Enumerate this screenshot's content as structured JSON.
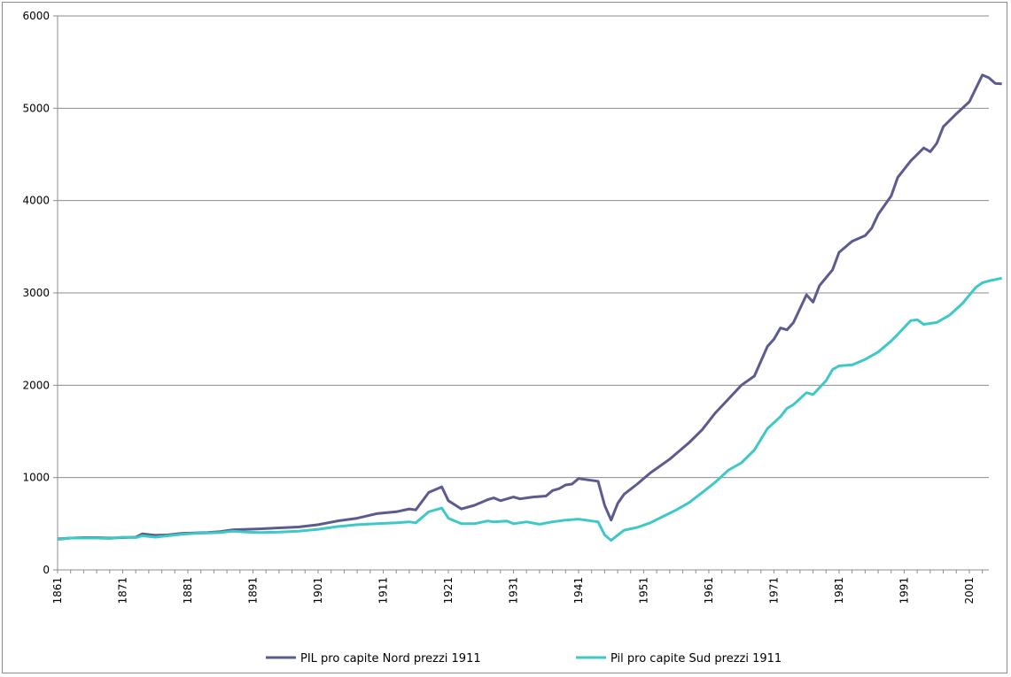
{
  "chart_data": {
    "type": "line",
    "title": "",
    "xlabel": "",
    "ylabel": "",
    "xlim": [
      1861,
      2004
    ],
    "ylim": [
      0,
      6000
    ],
    "y_ticks": [
      0,
      1000,
      2000,
      3000,
      4000,
      5000,
      6000
    ],
    "x_tick_labels": [
      "1861",
      "1871",
      "1881",
      "1891",
      "1901",
      "1911",
      "1921",
      "1931",
      "1941",
      "1951",
      "1961",
      "1971",
      "1981",
      "1991",
      "2001"
    ],
    "grid": "horizontal",
    "legend_position": "bottom",
    "series": [
      {
        "name": "PIL pro capite Nord prezzi 1911",
        "color": "#5b5b8f",
        "points": [
          [
            1861,
            335
          ],
          [
            1863,
            345
          ],
          [
            1865,
            350
          ],
          [
            1867,
            350
          ],
          [
            1869,
            345
          ],
          [
            1871,
            350
          ],
          [
            1873,
            355
          ],
          [
            1874,
            390
          ],
          [
            1876,
            375
          ],
          [
            1878,
            380
          ],
          [
            1880,
            395
          ],
          [
            1882,
            400
          ],
          [
            1884,
            405
          ],
          [
            1886,
            415
          ],
          [
            1888,
            435
          ],
          [
            1890,
            440
          ],
          [
            1892,
            445
          ],
          [
            1895,
            455
          ],
          [
            1898,
            465
          ],
          [
            1901,
            490
          ],
          [
            1904,
            530
          ],
          [
            1907,
            560
          ],
          [
            1910,
            610
          ],
          [
            1913,
            630
          ],
          [
            1915,
            660
          ],
          [
            1916,
            650
          ],
          [
            1918,
            840
          ],
          [
            1920,
            900
          ],
          [
            1921,
            750
          ],
          [
            1923,
            660
          ],
          [
            1925,
            700
          ],
          [
            1927,
            760
          ],
          [
            1928,
            780
          ],
          [
            1929,
            750
          ],
          [
            1931,
            790
          ],
          [
            1932,
            770
          ],
          [
            1934,
            790
          ],
          [
            1936,
            800
          ],
          [
            1937,
            860
          ],
          [
            1938,
            880
          ],
          [
            1939,
            920
          ],
          [
            1940,
            930
          ],
          [
            1941,
            990
          ],
          [
            1942,
            980
          ],
          [
            1943,
            970
          ],
          [
            1944,
            960
          ],
          [
            1945,
            700
          ],
          [
            1946,
            540
          ],
          [
            1947,
            720
          ],
          [
            1948,
            820
          ],
          [
            1950,
            930
          ],
          [
            1952,
            1050
          ],
          [
            1955,
            1200
          ],
          [
            1958,
            1380
          ],
          [
            1960,
            1520
          ],
          [
            1962,
            1700
          ],
          [
            1964,
            1850
          ],
          [
            1966,
            2000
          ],
          [
            1968,
            2100
          ],
          [
            1970,
            2420
          ],
          [
            1971,
            2500
          ],
          [
            1972,
            2620
          ],
          [
            1973,
            2600
          ],
          [
            1974,
            2680
          ],
          [
            1976,
            2980
          ],
          [
            1977,
            2900
          ],
          [
            1978,
            3080
          ],
          [
            1980,
            3250
          ],
          [
            1981,
            3440
          ],
          [
            1983,
            3560
          ],
          [
            1985,
            3620
          ],
          [
            1986,
            3700
          ],
          [
            1987,
            3850
          ],
          [
            1989,
            4050
          ],
          [
            1990,
            4250
          ],
          [
            1992,
            4430
          ],
          [
            1994,
            4570
          ],
          [
            1995,
            4530
          ],
          [
            1996,
            4620
          ],
          [
            1997,
            4800
          ],
          [
            1999,
            4940
          ],
          [
            2001,
            5070
          ],
          [
            2003,
            5360
          ],
          [
            2004,
            5330
          ],
          [
            2005,
            5270
          ],
          [
            2006,
            5265
          ]
        ]
      },
      {
        "name": "Pil pro capite Sud prezzi 1911",
        "color": "#3ec8c8",
        "points": [
          [
            1861,
            330
          ],
          [
            1863,
            345
          ],
          [
            1865,
            345
          ],
          [
            1867,
            345
          ],
          [
            1869,
            340
          ],
          [
            1871,
            355
          ],
          [
            1873,
            350
          ],
          [
            1874,
            370
          ],
          [
            1876,
            355
          ],
          [
            1878,
            370
          ],
          [
            1880,
            385
          ],
          [
            1882,
            395
          ],
          [
            1884,
            400
          ],
          [
            1886,
            405
          ],
          [
            1888,
            420
          ],
          [
            1890,
            410
          ],
          [
            1892,
            405
          ],
          [
            1895,
            410
          ],
          [
            1898,
            420
          ],
          [
            1901,
            440
          ],
          [
            1904,
            470
          ],
          [
            1907,
            490
          ],
          [
            1910,
            500
          ],
          [
            1913,
            510
          ],
          [
            1915,
            520
          ],
          [
            1916,
            510
          ],
          [
            1918,
            630
          ],
          [
            1920,
            670
          ],
          [
            1921,
            560
          ],
          [
            1923,
            500
          ],
          [
            1925,
            500
          ],
          [
            1927,
            530
          ],
          [
            1928,
            520
          ],
          [
            1930,
            530
          ],
          [
            1931,
            500
          ],
          [
            1933,
            520
          ],
          [
            1935,
            495
          ],
          [
            1937,
            520
          ],
          [
            1939,
            540
          ],
          [
            1941,
            550
          ],
          [
            1943,
            530
          ],
          [
            1944,
            520
          ],
          [
            1945,
            380
          ],
          [
            1946,
            320
          ],
          [
            1948,
            430
          ],
          [
            1950,
            460
          ],
          [
            1952,
            510
          ],
          [
            1954,
            580
          ],
          [
            1956,
            650
          ],
          [
            1958,
            730
          ],
          [
            1960,
            840
          ],
          [
            1962,
            950
          ],
          [
            1964,
            1080
          ],
          [
            1966,
            1160
          ],
          [
            1968,
            1300
          ],
          [
            1970,
            1530
          ],
          [
            1972,
            1660
          ],
          [
            1973,
            1750
          ],
          [
            1974,
            1790
          ],
          [
            1976,
            1920
          ],
          [
            1977,
            1900
          ],
          [
            1979,
            2050
          ],
          [
            1980,
            2170
          ],
          [
            1981,
            2210
          ],
          [
            1983,
            2220
          ],
          [
            1985,
            2280
          ],
          [
            1987,
            2360
          ],
          [
            1989,
            2480
          ],
          [
            1990,
            2550
          ],
          [
            1992,
            2700
          ],
          [
            1993,
            2710
          ],
          [
            1994,
            2660
          ],
          [
            1996,
            2680
          ],
          [
            1998,
            2760
          ],
          [
            2000,
            2890
          ],
          [
            2002,
            3060
          ],
          [
            2003,
            3110
          ],
          [
            2004,
            3130
          ],
          [
            2006,
            3160
          ]
        ]
      }
    ]
  }
}
